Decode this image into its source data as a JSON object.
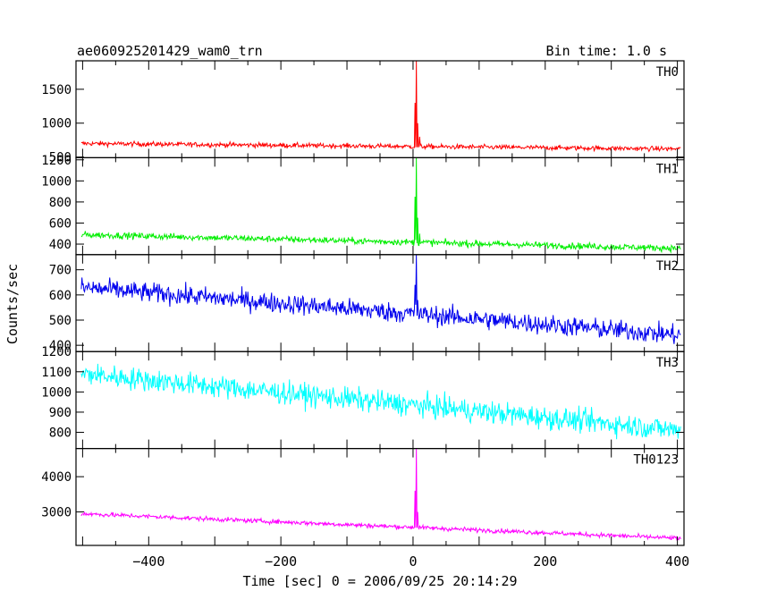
{
  "header": {
    "title": "ae060925201429_wam0_trn",
    "bin_time": "Bin time: 1.0 s"
  },
  "chart_data": {
    "type": "line",
    "xlabel": "Time [sec] 0 = 2006/09/25 20:14:29",
    "ylabel": "Counts/sec",
    "xlim": [
      -510,
      410
    ],
    "xticks": [
      -400,
      -200,
      0,
      200,
      400
    ],
    "panels": [
      {
        "name": "TH0",
        "color": "#ff0000",
        "ylim": [
          490,
          1920
        ],
        "yticks": [
          500,
          1000,
          1500
        ],
        "start": 700,
        "end": 620,
        "noise": 25,
        "peak": {
          "x": 5,
          "value": 1920
        },
        "tail": [
          {
            "x": 3,
            "value": 1300
          },
          {
            "x": 7,
            "value": 1000
          },
          {
            "x": 10,
            "value": 800
          }
        ]
      },
      {
        "name": "TH1",
        "color": "#00ee00",
        "ylim": [
          300,
          1220
        ],
        "yticks": [
          400,
          600,
          800,
          1000,
          1200
        ],
        "start": 490,
        "end": 360,
        "noise": 22,
        "peak": {
          "x": 5,
          "value": 1220
        },
        "tail": [
          {
            "x": 3,
            "value": 850
          },
          {
            "x": 7,
            "value": 650
          },
          {
            "x": 10,
            "value": 500
          }
        ]
      },
      {
        "name": "TH2",
        "color": "#0000ee",
        "ylim": [
          375,
          760
        ],
        "yticks": [
          400,
          500,
          600,
          700
        ],
        "start": 630,
        "end": 440,
        "noise": 28,
        "peak": {
          "x": 5,
          "value": 760
        },
        "tail": [
          {
            "x": 3,
            "value": 640
          },
          {
            "x": 7,
            "value": 580
          }
        ]
      },
      {
        "name": "TH3",
        "color": "#00ffff",
        "ylim": [
          720,
          1200
        ],
        "yticks": [
          800,
          900,
          1000,
          1100,
          1200
        ],
        "start": 1090,
        "end": 810,
        "noise": 40,
        "peak": null,
        "tail": []
      },
      {
        "name": "TH0123",
        "color": "#ff00ff",
        "ylim": [
          2050,
          4800
        ],
        "yticks": [
          3000,
          4000
        ],
        "start": 2950,
        "end": 2250,
        "noise": 45,
        "peak": {
          "x": 5,
          "value": 4800
        },
        "tail": [
          {
            "x": 3,
            "value": 3600
          },
          {
            "x": 7,
            "value": 3000
          },
          {
            "x": 10,
            "value": 2600
          }
        ]
      }
    ]
  }
}
